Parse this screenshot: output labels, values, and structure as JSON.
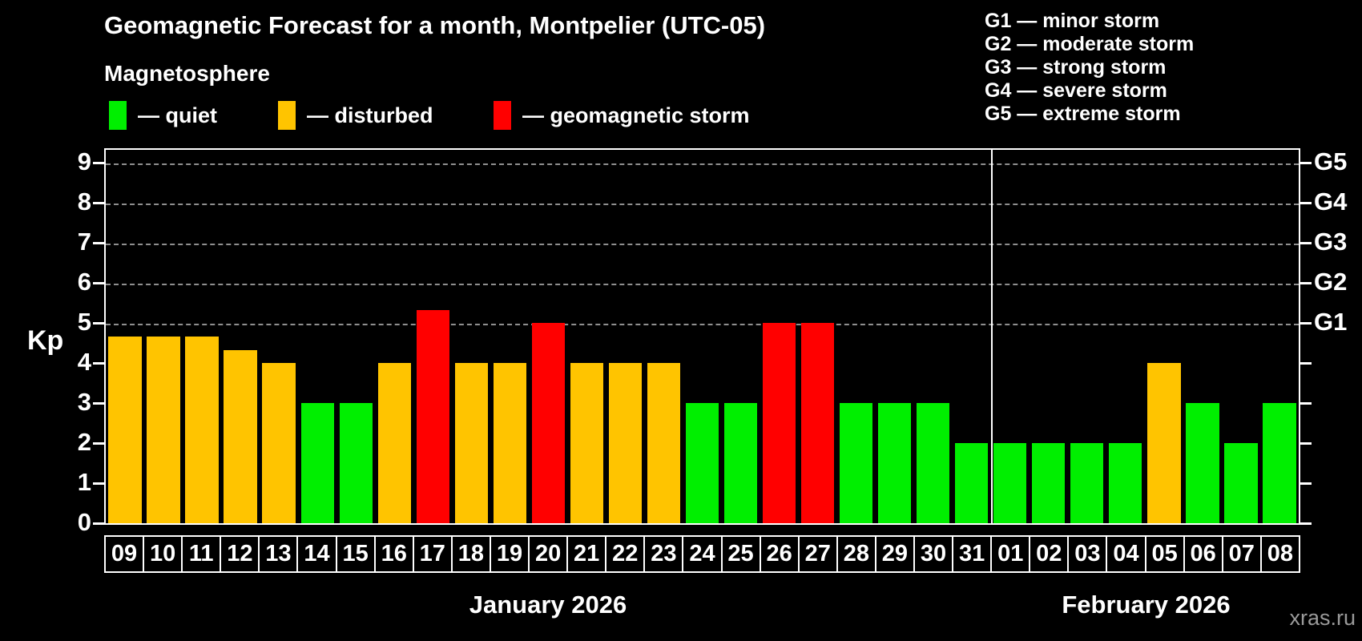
{
  "title": "Geomagnetic Forecast for a month, Montpelier (UTC-05)",
  "subtitle": "Magnetosphere",
  "legend": {
    "quiet": "— quiet",
    "disturbed": "— disturbed",
    "storm": "— geomagnetic storm"
  },
  "g_legend": [
    "G1 — minor storm",
    "G2 — moderate storm",
    "G3 — strong storm",
    "G4 — severe storm",
    "G5 — extreme storm"
  ],
  "axis": {
    "kp_label": "Kp",
    "kp_ticks": [
      "0",
      "1",
      "2",
      "3",
      "4",
      "5",
      "6",
      "7",
      "8",
      "9"
    ],
    "g_ticks": [
      "G1",
      "G2",
      "G3",
      "G4",
      "G5"
    ]
  },
  "months": [
    {
      "label": "January 2026"
    },
    {
      "label": "February 2026"
    }
  ],
  "watermark": "xras.ru",
  "colors": {
    "quiet": "#00ef00",
    "disturbed": "#ffc400",
    "storm": "#ff0000",
    "background": "#000000",
    "axis": "#ffffff",
    "gridline": "#a8a8a8"
  },
  "chart_data": {
    "type": "bar",
    "title": "Geomagnetic Forecast for a month, Montpelier (UTC-05)",
    "ylabel": "Kp",
    "ylim": [
      0,
      9.4
    ],
    "grid": "horizontal dashed lines at Kp 5,6,7,8,9 (G1–G5)",
    "right_axis_labels": {
      "5": "G1",
      "6": "G2",
      "7": "G3",
      "8": "G4",
      "9": "G5"
    },
    "legend_position": "top-left",
    "month_split_index": 23,
    "categories": [
      "09",
      "10",
      "11",
      "12",
      "13",
      "14",
      "15",
      "16",
      "17",
      "18",
      "19",
      "20",
      "21",
      "22",
      "23",
      "24",
      "25",
      "26",
      "27",
      "28",
      "29",
      "30",
      "31",
      "01",
      "02",
      "03",
      "04",
      "05",
      "06",
      "07",
      "08"
    ],
    "values": [
      4.67,
      4.67,
      4.67,
      4.33,
      4,
      3,
      3,
      4,
      5.33,
      4,
      4,
      5,
      4,
      4,
      4,
      3,
      3,
      5,
      5,
      3,
      3,
      3,
      2,
      2,
      2,
      2,
      2,
      4,
      3,
      2,
      3
    ],
    "statuses": [
      "disturbed",
      "disturbed",
      "disturbed",
      "disturbed",
      "disturbed",
      "quiet",
      "quiet",
      "disturbed",
      "storm",
      "disturbed",
      "disturbed",
      "storm",
      "disturbed",
      "disturbed",
      "disturbed",
      "quiet",
      "quiet",
      "storm",
      "storm",
      "quiet",
      "quiet",
      "quiet",
      "quiet",
      "quiet",
      "quiet",
      "quiet",
      "quiet",
      "disturbed",
      "quiet",
      "quiet",
      "quiet"
    ]
  }
}
